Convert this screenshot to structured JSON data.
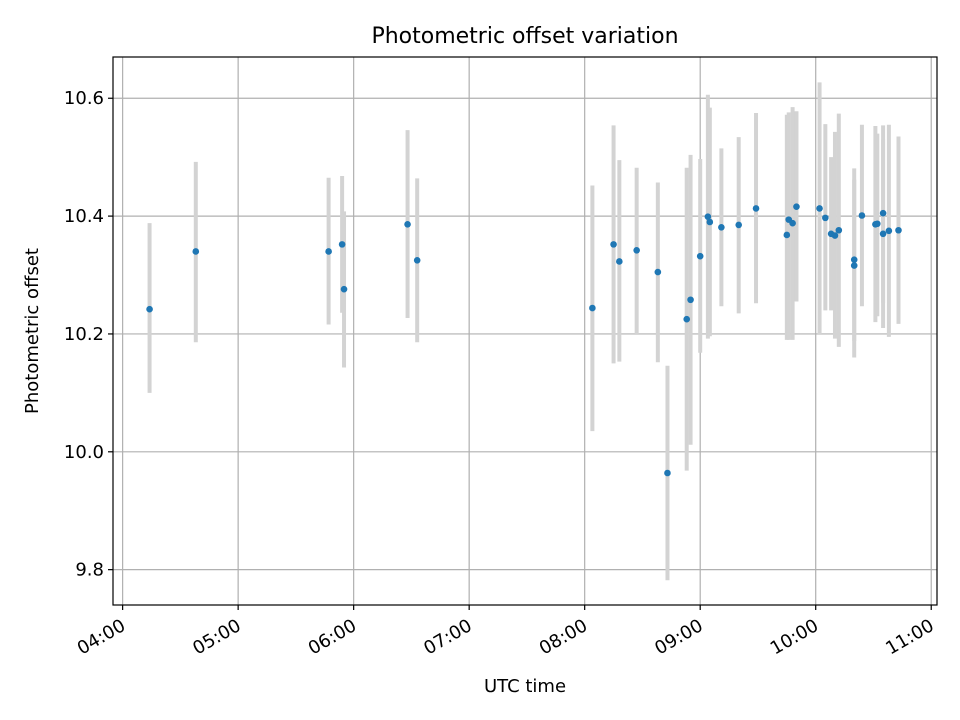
{
  "chart_data": {
    "type": "scatter",
    "title": "Photometric offset variation",
    "xlabel": "UTC time",
    "ylabel": "Photometric offset",
    "x_axis_type": "time",
    "xlim": [
      "03:55",
      "11:03"
    ],
    "ylim": [
      9.74,
      10.67
    ],
    "xticks": [
      "04:00",
      "05:00",
      "06:00",
      "07:00",
      "08:00",
      "09:00",
      "10:00",
      "11:00"
    ],
    "yticks": [
      9.8,
      10.0,
      10.2,
      10.4,
      10.6
    ],
    "ytick_labels": [
      "9.8",
      "10.0",
      "10.2",
      "10.4",
      "10.6"
    ],
    "grid": true,
    "marker_color": "#1f77b4",
    "errorbar_color": "#d3d3d3",
    "points": [
      {
        "x": "04:14",
        "y": 10.242,
        "ylo": 10.1,
        "yhi": 10.388
      },
      {
        "x": "04:38",
        "y": 10.34,
        "ylo": 10.186,
        "yhi": 10.492
      },
      {
        "x": "05:47",
        "y": 10.34,
        "ylo": 10.216,
        "yhi": 10.465
      },
      {
        "x": "05:54",
        "y": 10.352,
        "ylo": 10.236,
        "yhi": 10.468
      },
      {
        "x": "05:55",
        "y": 10.276,
        "ylo": 10.143,
        "yhi": 10.408
      },
      {
        "x": "06:28",
        "y": 10.386,
        "ylo": 10.227,
        "yhi": 10.546
      },
      {
        "x": "06:33",
        "y": 10.325,
        "ylo": 10.186,
        "yhi": 10.464
      },
      {
        "x": "08:04",
        "y": 10.244,
        "ylo": 10.035,
        "yhi": 10.452
      },
      {
        "x": "08:15",
        "y": 10.352,
        "ylo": 10.15,
        "yhi": 10.554
      },
      {
        "x": "08:18",
        "y": 10.323,
        "ylo": 10.153,
        "yhi": 10.495
      },
      {
        "x": "08:27",
        "y": 10.342,
        "ylo": 10.2,
        "yhi": 10.482
      },
      {
        "x": "08:38",
        "y": 10.305,
        "ylo": 10.152,
        "yhi": 10.457
      },
      {
        "x": "08:43",
        "y": 9.964,
        "ylo": 9.782,
        "yhi": 10.146
      },
      {
        "x": "08:53",
        "y": 10.225,
        "ylo": 9.968,
        "yhi": 10.482
      },
      {
        "x": "08:55",
        "y": 10.258,
        "ylo": 10.012,
        "yhi": 10.504
      },
      {
        "x": "09:00",
        "y": 10.332,
        "ylo": 10.168,
        "yhi": 10.497
      },
      {
        "x": "09:04",
        "y": 10.399,
        "ylo": 10.192,
        "yhi": 10.606
      },
      {
        "x": "09:05",
        "y": 10.39,
        "ylo": 10.196,
        "yhi": 10.584
      },
      {
        "x": "09:11",
        "y": 10.381,
        "ylo": 10.247,
        "yhi": 10.515
      },
      {
        "x": "09:20",
        "y": 10.385,
        "ylo": 10.235,
        "yhi": 10.534
      },
      {
        "x": "09:29",
        "y": 10.413,
        "ylo": 10.252,
        "yhi": 10.575
      },
      {
        "x": "09:45",
        "y": 10.368,
        "ylo": 10.19,
        "yhi": 10.572
      },
      {
        "x": "09:46",
        "y": 10.394,
        "ylo": 10.19,
        "yhi": 10.576
      },
      {
        "x": "09:48",
        "y": 10.388,
        "ylo": 10.19,
        "yhi": 10.585
      },
      {
        "x": "09:50",
        "y": 10.416,
        "ylo": 10.255,
        "yhi": 10.578
      },
      {
        "x": "10:02",
        "y": 10.413,
        "ylo": 10.2,
        "yhi": 10.627
      },
      {
        "x": "10:05",
        "y": 10.397,
        "ylo": 10.24,
        "yhi": 10.556
      },
      {
        "x": "10:08",
        "y": 10.37,
        "ylo": 10.24,
        "yhi": 10.5
      },
      {
        "x": "10:10",
        "y": 10.367,
        "ylo": 10.192,
        "yhi": 10.543
      },
      {
        "x": "10:12",
        "y": 10.376,
        "ylo": 10.178,
        "yhi": 10.574
      },
      {
        "x": "10:20",
        "y": 10.316,
        "ylo": 10.16,
        "yhi": 10.481
      },
      {
        "x": "10:20",
        "y": 10.326,
        "ylo": 10.188,
        "yhi": 10.462
      },
      {
        "x": "10:24",
        "y": 10.401,
        "ylo": 10.247,
        "yhi": 10.555
      },
      {
        "x": "10:31",
        "y": 10.386,
        "ylo": 10.22,
        "yhi": 10.553
      },
      {
        "x": "10:32",
        "y": 10.387,
        "ylo": 10.23,
        "yhi": 10.54
      },
      {
        "x": "10:35",
        "y": 10.37,
        "ylo": 10.21,
        "yhi": 10.53
      },
      {
        "x": "10:35",
        "y": 10.405,
        "ylo": 10.253,
        "yhi": 10.554
      },
      {
        "x": "10:38",
        "y": 10.375,
        "ylo": 10.195,
        "yhi": 10.555
      },
      {
        "x": "10:43",
        "y": 10.376,
        "ylo": 10.217,
        "yhi": 10.535
      }
    ]
  }
}
